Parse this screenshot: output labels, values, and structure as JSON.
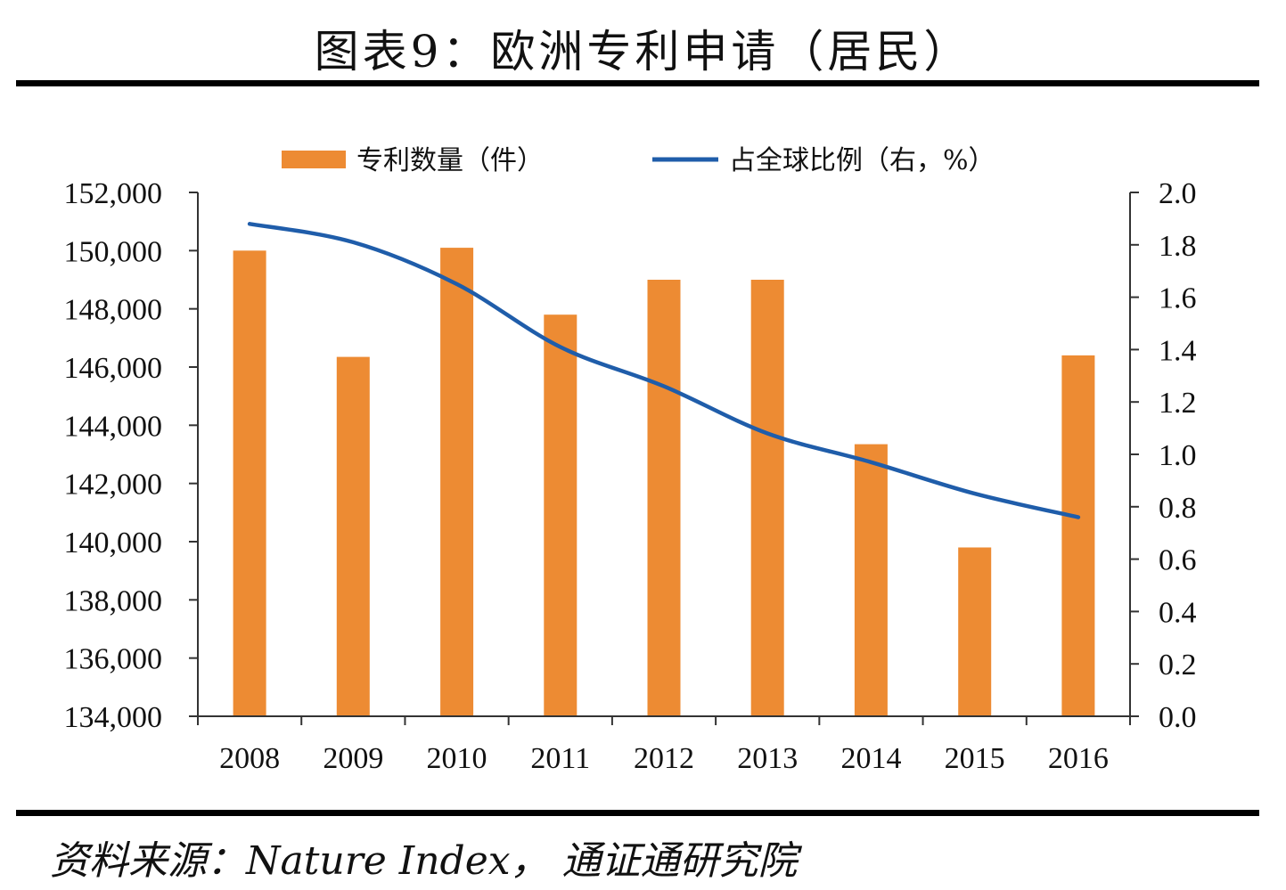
{
  "title": "图表9：欧洲专利申请（居民）",
  "source": "资料来源：Nature Index，  通证通研究院",
  "colors": {
    "bar": "#ED8B33",
    "line": "#1F5DAA",
    "axis": "#333333"
  },
  "chart_data": {
    "type": "bar",
    "title": "图表9：欧洲专利申请（居民）",
    "categories": [
      "2008",
      "2009",
      "2010",
      "2011",
      "2012",
      "2013",
      "2014",
      "2015",
      "2016"
    ],
    "series": [
      {
        "name": "专利数量（件）",
        "type": "bar",
        "axis": "left",
        "values": [
          150000,
          146350,
          150100,
          147800,
          149000,
          149000,
          143350,
          139800,
          146400
        ]
      },
      {
        "name": "占全球比例（右，%）",
        "type": "line",
        "axis": "right",
        "values": [
          1.88,
          1.81,
          1.65,
          1.41,
          1.26,
          1.08,
          0.97,
          0.85,
          0.76
        ]
      }
    ],
    "y_left": {
      "min": 134000,
      "max": 152000,
      "ticks": [
        "134,000",
        "136,000",
        "138,000",
        "140,000",
        "142,000",
        "144,000",
        "146,000",
        "148,000",
        "150,000",
        "152,000"
      ]
    },
    "y_right": {
      "min": 0.0,
      "max": 2.0,
      "ticks": [
        "0.0",
        "0.2",
        "0.4",
        "0.6",
        "0.8",
        "1.0",
        "1.2",
        "1.4",
        "1.6",
        "1.8",
        "2.0"
      ]
    },
    "grid": false,
    "legend": "top-center"
  }
}
